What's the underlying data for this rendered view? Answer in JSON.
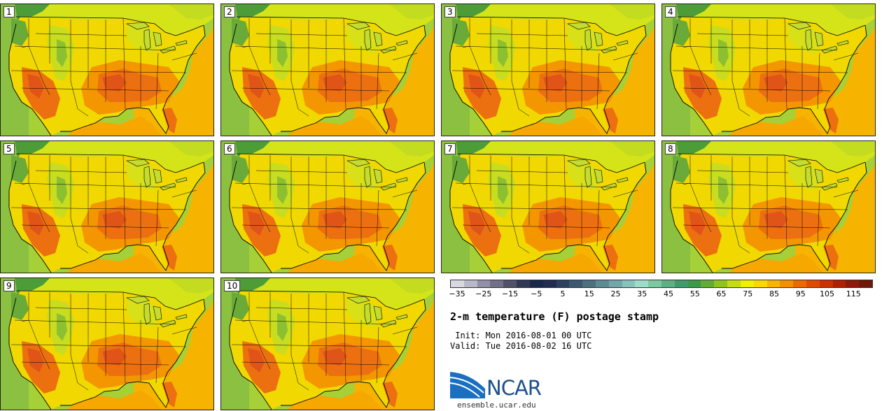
{
  "panels": [
    {
      "label": "1"
    },
    {
      "label": "2"
    },
    {
      "label": "3"
    },
    {
      "label": "4"
    },
    {
      "label": "5"
    },
    {
      "label": "6"
    },
    {
      "label": "7"
    },
    {
      "label": "8"
    },
    {
      "label": "9"
    },
    {
      "label": "10"
    }
  ],
  "colorbar": {
    "colors": [
      "#d8d8e0",
      "#b8b8c8",
      "#9090a8",
      "#707088",
      "#505068",
      "#303858",
      "#18284a",
      "#202c50",
      "#2c4060",
      "#3c5870",
      "#4c7080",
      "#5e8a94",
      "#72a6a8",
      "#88c2bc",
      "#9cdcc8",
      "#7cc8a0",
      "#5cb084",
      "#409a6c",
      "#3a9a48",
      "#60ac34",
      "#90c41c",
      "#c4dc10",
      "#f0f000",
      "#f8d800",
      "#f8b400",
      "#f49000",
      "#ec6800",
      "#e04a00",
      "#cc3000",
      "#b02000",
      "#901808",
      "#701808"
    ],
    "tick_labels": [
      "−35",
      "−25",
      "−15",
      "−5",
      "5",
      "15",
      "25",
      "35",
      "45",
      "55",
      "65",
      "75",
      "85",
      "95",
      "105",
      "115"
    ]
  },
  "title": "2-m temperature (F) postage stamp",
  "init_line": " Init: Mon 2016-08-01 00 UTC",
  "valid_line": "Valid: Tue 2016-08-02 16 UTC",
  "logo": {
    "text": "NCAR",
    "url": "ensemble.ucar.edu",
    "color": "#1c4f8f"
  },
  "map_colors": {
    "ocean_west": "#9ccc3c",
    "ocean_east": "#f6b800",
    "land": "#f0e000",
    "hot": "#f49a00",
    "hotter": "#ec6e10",
    "hottest": "#e05418",
    "cool": "#b8d828",
    "mountain": "#6aa838",
    "lake": "#d8e020"
  }
}
